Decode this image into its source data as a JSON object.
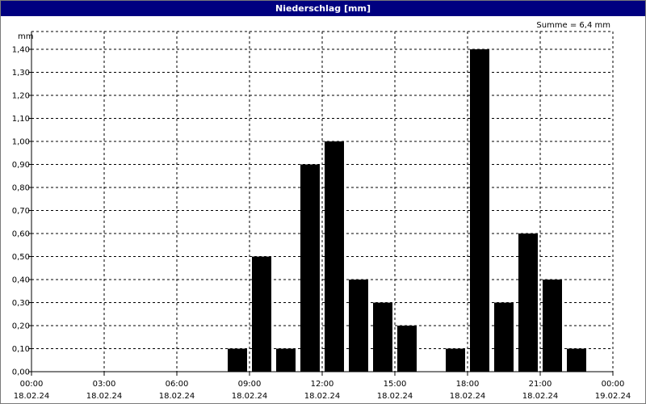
{
  "window": {
    "title": "Niederschlag [mm]"
  },
  "chart_data": {
    "type": "bar",
    "title": "Niederschlag [mm]",
    "ylabel": "mm",
    "annotation": "Summe = 6,4 mm",
    "ylim": [
      0,
      1.4
    ],
    "grid": true,
    "xlim_hours": [
      0,
      24
    ],
    "bar_width_hours": 0.8,
    "y_ticks": [
      "0,00",
      "0,10",
      "0,20",
      "0,30",
      "0,40",
      "0,50",
      "0,60",
      "0,70",
      "0,80",
      "0,90",
      "1,00",
      "1,10",
      "1,20",
      "1,30",
      "1,40"
    ],
    "x_ticks": [
      {
        "time": "00:00",
        "date": "18.02.24"
      },
      {
        "time": "03:00",
        "date": "18.02.24"
      },
      {
        "time": "06:00",
        "date": "18.02.24"
      },
      {
        "time": "09:00",
        "date": "18.02.24"
      },
      {
        "time": "12:00",
        "date": "18.02.24"
      },
      {
        "time": "15:00",
        "date": "18.02.24"
      },
      {
        "time": "18:00",
        "date": "18.02.24"
      },
      {
        "time": "21:00",
        "date": "18.02.24"
      },
      {
        "time": "00:00",
        "date": "19.02.24"
      }
    ],
    "bars": [
      {
        "hour": 8.5,
        "value": 0.1
      },
      {
        "hour": 9.5,
        "value": 0.5
      },
      {
        "hour": 10.5,
        "value": 0.1
      },
      {
        "hour": 11.5,
        "value": 0.9
      },
      {
        "hour": 12.5,
        "value": 1.0
      },
      {
        "hour": 13.5,
        "value": 0.4
      },
      {
        "hour": 14.5,
        "value": 0.3
      },
      {
        "hour": 15.5,
        "value": 0.2
      },
      {
        "hour": 17.5,
        "value": 0.1
      },
      {
        "hour": 18.5,
        "value": 1.4
      },
      {
        "hour": 19.5,
        "value": 0.3
      },
      {
        "hour": 20.5,
        "value": 0.6
      },
      {
        "hour": 21.5,
        "value": 0.4
      },
      {
        "hour": 22.5,
        "value": 0.1
      }
    ],
    "colors": {
      "bar": "#000000",
      "titlebar": "#000080",
      "grid": "#000000"
    }
  }
}
